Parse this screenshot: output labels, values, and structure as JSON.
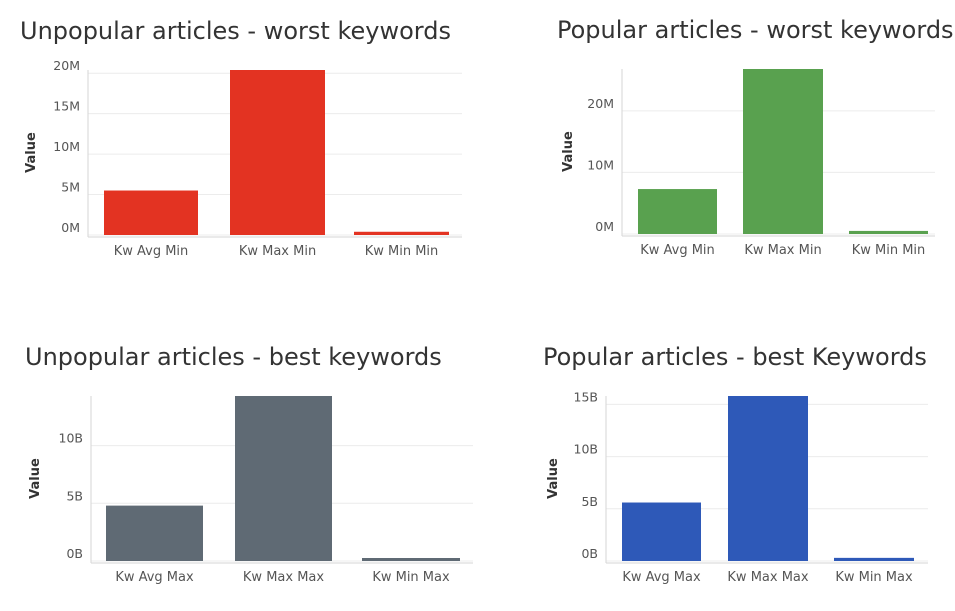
{
  "chart_data": [
    {
      "type": "bar",
      "title": "Unpopular articles - worst keywords",
      "ylabel": "Value",
      "xlabel": "",
      "categories": [
        "Kw Avg Min",
        "Kw Max Min",
        "Kw Min Min"
      ],
      "values": [
        5500000,
        20400000,
        400000
      ],
      "ylim": [
        0,
        20400000
      ],
      "yticks": [
        0,
        5000000,
        10000000,
        15000000,
        20000000
      ],
      "ytick_labels": [
        "0M",
        "5M",
        "10M",
        "15M",
        "20M"
      ],
      "color": "#e33322",
      "grid": true,
      "legend": "none"
    },
    {
      "type": "bar",
      "title": "Popular articles - worst keywords",
      "ylabel": "Value",
      "xlabel": "",
      "categories": [
        "Kw Avg Min",
        "Kw Max Min",
        "Kw Min Min"
      ],
      "values": [
        7300000,
        26800000,
        500000
      ],
      "ylim": [
        0,
        26800000
      ],
      "yticks": [
        0,
        10000000,
        20000000
      ],
      "ytick_labels": [
        "0M",
        "10M",
        "20M"
      ],
      "color": "#59a14f",
      "grid": true,
      "legend": "none"
    },
    {
      "type": "bar",
      "title": "Unpopular articles - best keywords",
      "ylabel": "Value",
      "xlabel": "",
      "categories": [
        "Kw Avg Max",
        "Kw Max Max",
        "Kw Min Max"
      ],
      "values": [
        4800000000,
        14300000000,
        200000000
      ],
      "ylim": [
        0,
        14300000000
      ],
      "yticks": [
        0,
        5000000000,
        10000000000
      ],
      "ytick_labels": [
        "0B",
        "5B",
        "10B"
      ],
      "color": "#5f6a74",
      "grid": true,
      "legend": "none"
    },
    {
      "type": "bar",
      "title": "Popular articles - best Keywords",
      "ylabel": "Value",
      "xlabel": "",
      "categories": [
        "Kw Avg Max",
        "Kw Max Max",
        "Kw Min Max"
      ],
      "values": [
        5600000000,
        15800000000,
        300000000
      ],
      "ylim": [
        0,
        15800000000
      ],
      "yticks": [
        0,
        5000000000,
        10000000000,
        15000000000
      ],
      "ytick_labels": [
        "0B",
        "5B",
        "10B",
        "15B"
      ],
      "color": "#2e59b8",
      "grid": true,
      "legend": "none"
    }
  ]
}
